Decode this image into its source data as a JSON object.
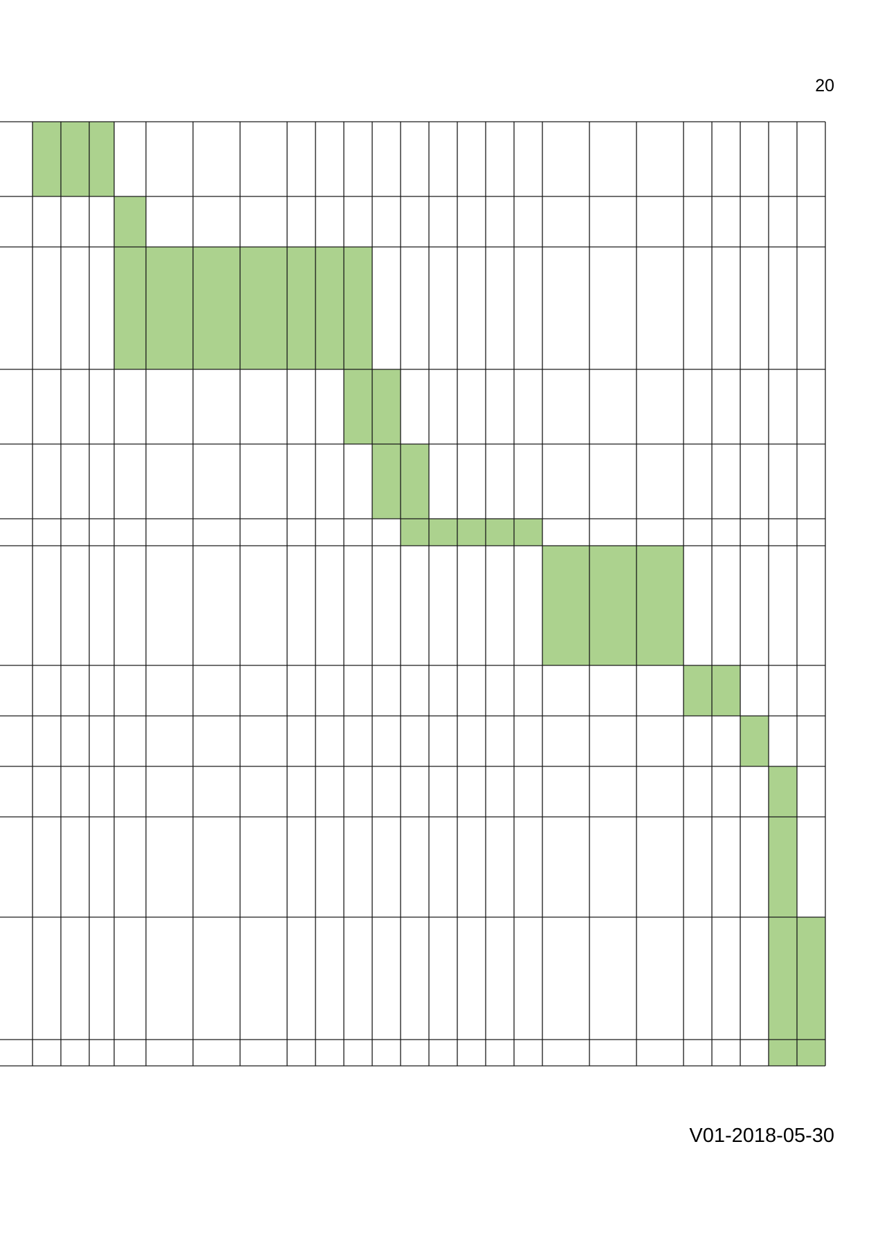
{
  "page": {
    "number": "20",
    "version": "V01-2018-05-30"
  },
  "colors": {
    "filled_cell": "#acd28e",
    "grid_line": "#1a1a1a"
  },
  "gantt": {
    "row_count": 13,
    "column_count": 26,
    "rows": [
      {
        "filled_columns": [
          1,
          2,
          3
        ]
      },
      {
        "filled_columns": [
          4
        ]
      },
      {
        "filled_columns": [
          4,
          5,
          6,
          7,
          8,
          9,
          10
        ]
      },
      {
        "filled_columns": [
          10,
          11
        ]
      },
      {
        "filled_columns": [
          11,
          12
        ]
      },
      {
        "filled_columns": [
          12,
          13,
          14,
          15,
          16
        ]
      },
      {
        "filled_columns": [
          17,
          18,
          19
        ]
      },
      {
        "filled_columns": [
          20,
          21
        ]
      },
      {
        "filled_columns": [
          22
        ]
      },
      {
        "filled_columns": [
          23
        ]
      },
      {
        "filled_columns": [
          23
        ]
      },
      {
        "filled_columns": [
          23,
          24
        ]
      },
      {
        "filled_columns": [
          23,
          24
        ]
      }
    ]
  }
}
